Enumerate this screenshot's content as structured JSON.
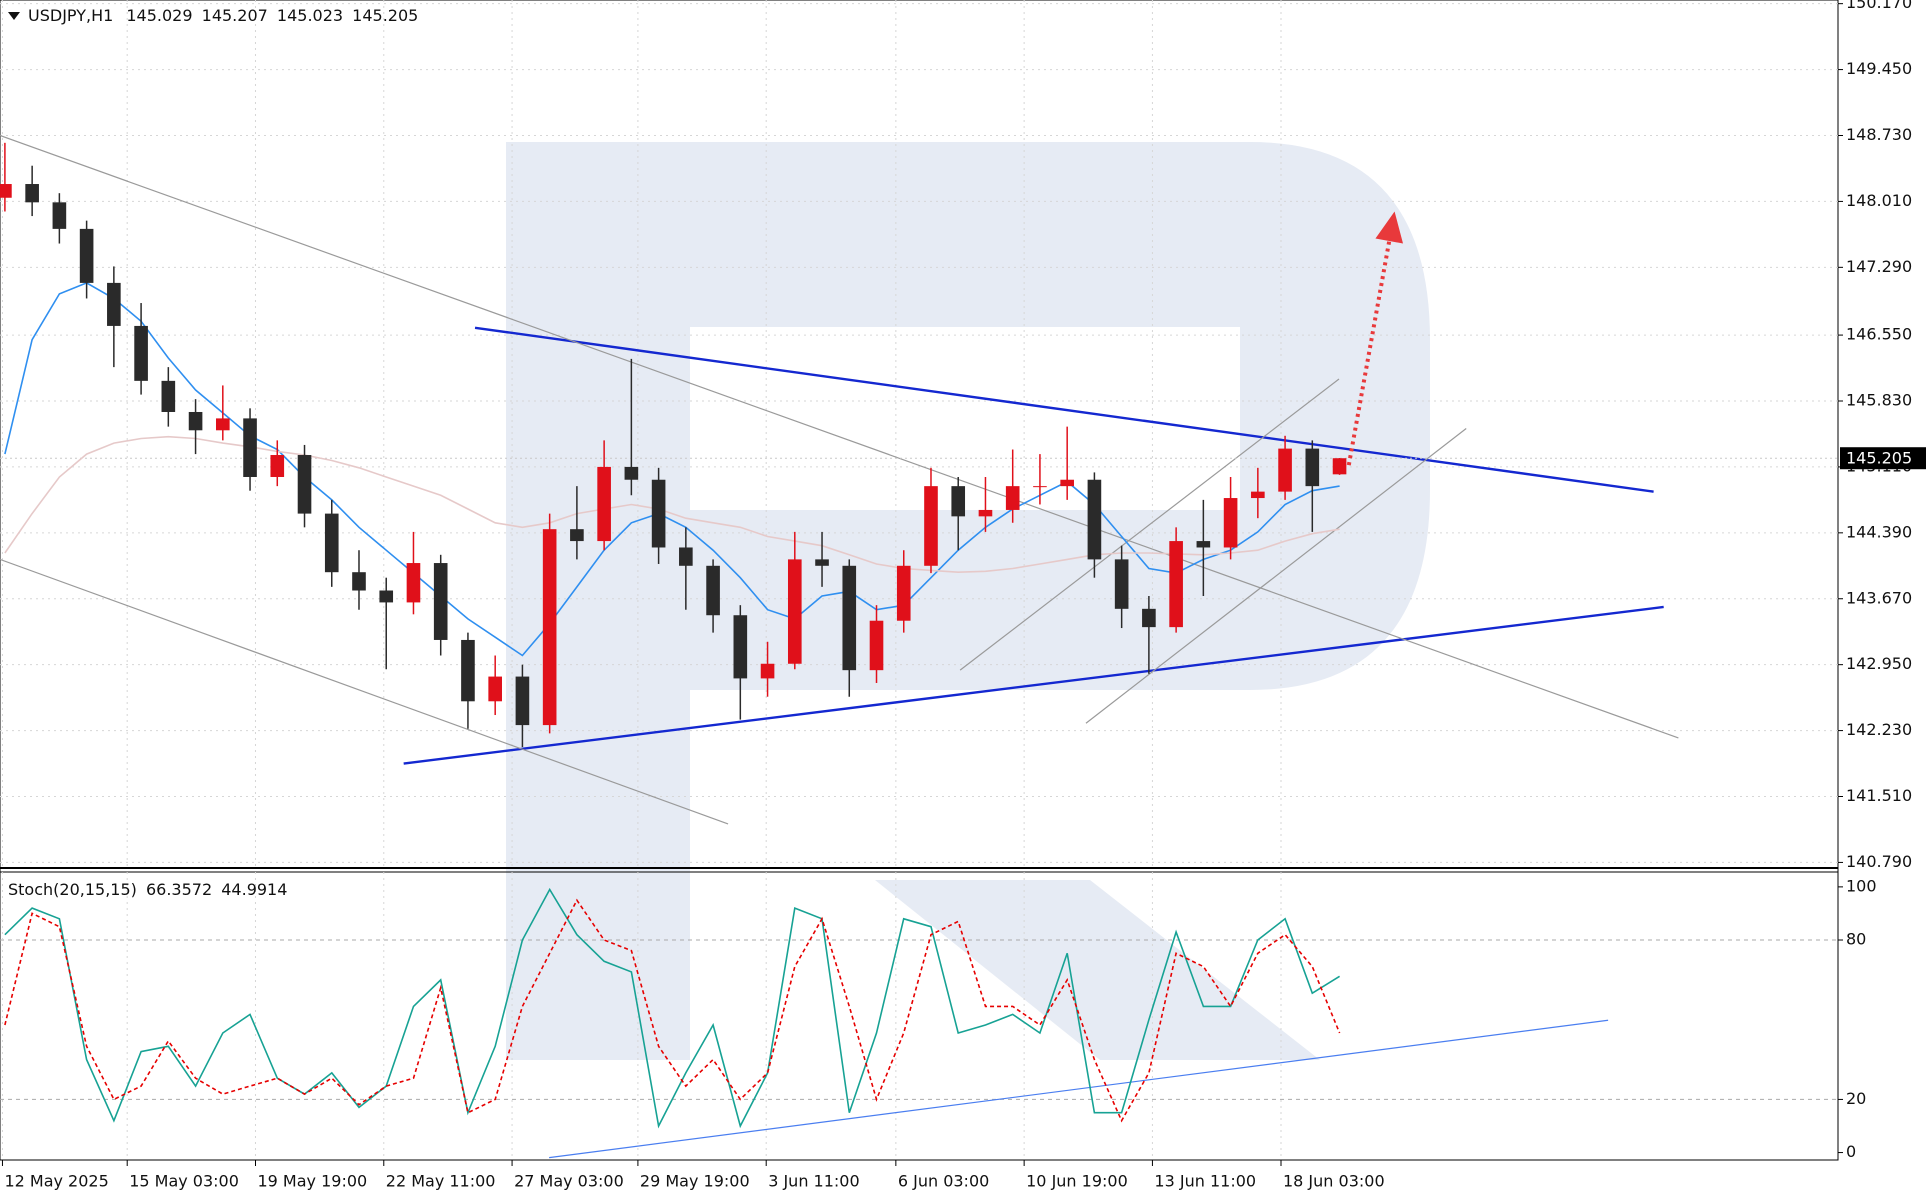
{
  "chart_data": [
    {
      "type": "candlestick",
      "title": "USDJPY,H1",
      "open": [
        148.05,
        148.2,
        148.0,
        147.71,
        147.12,
        146.65,
        146.05,
        145.71,
        145.51,
        145.64,
        145.0,
        145.24,
        144.6,
        143.96,
        143.76,
        143.63,
        144.06,
        143.22,
        142.55,
        142.82,
        142.29,
        144.43,
        144.3,
        145.11,
        144.97,
        144.23,
        144.03,
        143.49,
        142.8,
        142.96,
        144.1,
        144.03,
        142.89,
        143.43,
        144.03,
        144.9,
        144.57,
        144.64,
        144.9,
        144.9,
        144.97,
        144.1,
        143.56,
        143.36,
        144.3,
        144.23,
        144.77,
        144.84,
        145.31,
        145.029
      ],
      "high": [
        148.65,
        148.4,
        148.1,
        147.8,
        147.3,
        146.9,
        146.2,
        145.85,
        146.0,
        145.75,
        145.4,
        145.35,
        144.75,
        144.2,
        143.9,
        144.4,
        144.15,
        143.3,
        143.05,
        142.95,
        144.6,
        144.9,
        145.4,
        146.29,
        145.1,
        144.45,
        144.1,
        143.6,
        143.2,
        144.4,
        144.4,
        144.1,
        143.6,
        144.2,
        145.1,
        145.0,
        145.0,
        145.3,
        145.25,
        145.55,
        145.05,
        144.25,
        143.7,
        144.45,
        144.75,
        145.0,
        145.1,
        145.45,
        145.4,
        145.207
      ],
      "low": [
        147.9,
        147.85,
        147.55,
        146.95,
        146.2,
        145.9,
        145.55,
        145.25,
        145.4,
        144.85,
        144.9,
        144.45,
        143.8,
        143.55,
        142.9,
        143.5,
        143.05,
        142.25,
        142.4,
        142.05,
        142.2,
        144.1,
        144.2,
        144.8,
        144.05,
        143.55,
        143.3,
        142.35,
        142.6,
        142.9,
        143.8,
        142.6,
        142.75,
        143.3,
        143.95,
        144.2,
        144.4,
        144.5,
        144.7,
        144.75,
        143.9,
        143.35,
        142.85,
        143.3,
        143.7,
        144.1,
        144.55,
        144.75,
        144.4,
        145.023
      ],
      "close": [
        148.2,
        148.0,
        147.71,
        147.12,
        146.65,
        146.05,
        145.71,
        145.51,
        145.64,
        145.0,
        145.24,
        144.6,
        143.96,
        143.76,
        143.63,
        144.06,
        143.22,
        142.55,
        142.82,
        142.29,
        144.43,
        144.3,
        145.11,
        144.97,
        144.23,
        144.03,
        143.49,
        142.8,
        142.96,
        144.1,
        144.03,
        142.89,
        143.43,
        144.03,
        144.9,
        144.57,
        144.64,
        144.9,
        144.9,
        144.97,
        144.1,
        143.56,
        143.36,
        144.3,
        144.23,
        144.77,
        144.84,
        145.31,
        144.9,
        145.205
      ],
      "up_color": "#e0101a",
      "down_color": "#2a2a2a",
      "series": [
        {
          "color": "#2f8ff0",
          "values": [
            145.25,
            146.5,
            147.0,
            147.12,
            146.95,
            146.7,
            146.3,
            145.95,
            145.7,
            145.45,
            145.3,
            145.0,
            144.75,
            144.45,
            144.2,
            143.95,
            143.7,
            143.45,
            143.25,
            143.05,
            143.4,
            143.8,
            144.2,
            144.5,
            144.6,
            144.45,
            144.2,
            143.9,
            143.55,
            143.45,
            143.7,
            143.75,
            143.55,
            143.6,
            143.9,
            144.2,
            144.45,
            144.65,
            144.8,
            144.95,
            144.7,
            144.35,
            144.0,
            143.95,
            144.1,
            144.2,
            144.4,
            144.7,
            144.85,
            144.9
          ]
        },
        {
          "color": "#e6c9c9",
          "values": [
            144.17,
            144.6,
            145.0,
            145.25,
            145.37,
            145.42,
            145.44,
            145.42,
            145.37,
            145.33,
            145.28,
            145.24,
            145.18,
            145.1,
            145.0,
            144.9,
            144.8,
            144.65,
            144.5,
            144.45,
            144.5,
            144.6,
            144.65,
            144.7,
            144.65,
            144.55,
            144.5,
            144.45,
            144.35,
            144.3,
            144.25,
            144.15,
            144.05,
            144.0,
            143.98,
            143.96,
            143.97,
            144.0,
            144.05,
            144.1,
            144.15,
            144.17,
            144.17,
            144.16,
            144.15,
            144.17,
            144.2,
            144.3,
            144.38,
            144.43
          ]
        }
      ],
      "trendlines": [
        {
          "color": "#1428d0",
          "width": 2,
          "style": "solid",
          "points": [
            [
              17.26,
              146.63
            ],
            [
              60.53,
              144.84
            ]
          ]
        },
        {
          "color": "#1428d0",
          "width": 2,
          "style": "solid",
          "points": [
            [
              14.64,
              141.87
            ],
            [
              60.9,
              143.58
            ]
          ]
        },
        {
          "color": "#9a9a9a",
          "width": 1,
          "style": "solid",
          "points": [
            [
              -0.18,
              148.73
            ],
            [
              61.44,
              142.15
            ]
          ]
        },
        {
          "color": "#9a9a9a",
          "width": 1,
          "style": "solid",
          "points": [
            [
              -0.18,
              144.1
            ],
            [
              26.55,
              141.21
            ]
          ]
        },
        {
          "color": "#9a9a9a",
          "width": 1,
          "style": "solid",
          "points": [
            [
              35.07,
              142.89
            ],
            [
              48.98,
              146.07
            ]
          ]
        },
        {
          "color": "#9a9a9a",
          "width": 1,
          "style": "solid",
          "points": [
            [
              39.69,
              142.31
            ],
            [
              53.65,
              145.53
            ]
          ]
        }
      ],
      "arrow": {
        "color": "#e8393b",
        "style": "dotted",
        "points": [
          [
            49.34,
            145.13
          ],
          [
            51.02,
            147.9
          ]
        ]
      },
      "xlim": [
        -0.18,
        67.3
      ],
      "xticks": [
        {
          "value": -0.09,
          "label": "12 May 2025"
        },
        {
          "value": 4.49,
          "label": "15 May 03:00"
        },
        {
          "value": 9.2,
          "label": "19 May 19:00"
        },
        {
          "value": 13.91,
          "label": "22 May 11:00"
        },
        {
          "value": 18.62,
          "label": "27 May 03:00"
        },
        {
          "value": 23.24,
          "label": "29 May 19:00"
        },
        {
          "value": 27.95,
          "label": "3 Jun 11:00"
        },
        {
          "value": 32.71,
          "label": "6 Jun 03:00"
        },
        {
          "value": 37.42,
          "label": "10 Jun 19:00"
        },
        {
          "value": 42.13,
          "label": "13 Jun 11:00"
        },
        {
          "value": 46.85,
          "label": "18 Jun 03:00"
        }
      ],
      "ylim": [
        140.74,
        150.21
      ],
      "yticks": [
        {
          "value": 150.17,
          "label": "150.170"
        },
        {
          "value": 149.45,
          "label": "149.450"
        },
        {
          "value": 148.73,
          "label": "148.730"
        },
        {
          "value": 148.01,
          "label": "148.010"
        },
        {
          "value": 147.29,
          "label": "147.290"
        },
        {
          "value": 146.55,
          "label": "146.550"
        },
        {
          "value": 145.83,
          "label": "145.830"
        },
        {
          "value": 145.11,
          "label": "145.110"
        },
        {
          "value": 144.39,
          "label": "144.390"
        },
        {
          "value": 143.67,
          "label": "143.670"
        },
        {
          "value": 142.95,
          "label": "142.950"
        },
        {
          "value": 142.23,
          "label": "142.230"
        },
        {
          "value": 141.51,
          "label": "141.510"
        },
        {
          "value": 140.79,
          "label": "140.790"
        }
      ],
      "grid": true
    },
    {
      "type": "line",
      "title": "Stoch(20,15,15)",
      "series": [
        {
          "color": "#17a294",
          "style": "solid",
          "values": [
            82,
            92,
            88,
            35,
            12,
            38,
            40,
            25,
            45,
            52,
            28,
            22,
            30,
            17,
            25,
            55,
            65,
            15,
            40,
            80,
            99,
            82,
            72,
            68,
            10,
            30,
            48,
            10,
            30,
            92,
            88,
            15,
            45,
            88,
            85,
            45,
            48,
            52,
            45,
            75,
            15,
            15,
            50,
            83,
            55,
            55,
            80,
            88,
            60,
            66.3572
          ]
        },
        {
          "color": "#e60000",
          "style": "dashed",
          "values": [
            48,
            90,
            85,
            40,
            20,
            25,
            42,
            28,
            22,
            25,
            28,
            22,
            28,
            18,
            25,
            28,
            62,
            15,
            20,
            55,
            75,
            95,
            80,
            76,
            40,
            25,
            35,
            20,
            30,
            70,
            88,
            55,
            20,
            45,
            82,
            87,
            55,
            55,
            48,
            65,
            35,
            12,
            30,
            75,
            70,
            55,
            75,
            82,
            70,
            44.9914
          ]
        }
      ],
      "trendlines": [
        {
          "color": "#4a7ef0",
          "width": 1,
          "style": "solid",
          "points": [
            [
              19.98,
              -1.9
            ],
            [
              58.86,
              49.8
            ]
          ]
        }
      ],
      "xlim": [
        -0.18,
        67.3
      ],
      "ylim": [
        -2.8,
        105.6
      ],
      "yticks": [
        100,
        80,
        20,
        0
      ],
      "levels": [
        80,
        20
      ],
      "grid": true
    }
  ]
}
